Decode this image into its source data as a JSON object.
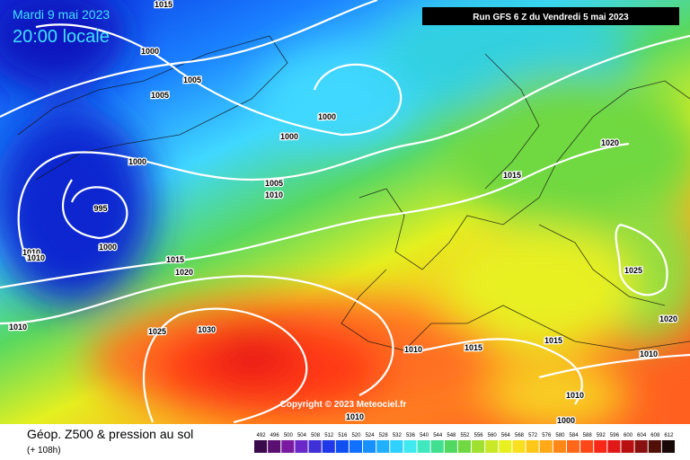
{
  "header": {
    "date": "Mardi 9 mai 2023",
    "time": "20:00 locale",
    "run": "Run GFS 6 Z du Vendredi 5 mai 2023",
    "copyright": "Copyright © 2023 Meteociel.fr"
  },
  "footer": {
    "title": "Géop. Z500 & pression au sol",
    "subtitle": "(+ 108h)"
  },
  "isobar_labels": [
    1015,
    1000,
    1005,
    1005,
    1000,
    1000,
    1000,
    995,
    1000,
    1010,
    1010,
    1015,
    1020,
    1005,
    1010,
    1015,
    1020,
    1025,
    1020,
    1010,
    1025,
    1030,
    1010,
    1015,
    1015,
    1010,
    1010,
    1000,
    1010
  ],
  "colorbar": {
    "labels": [
      492,
      496,
      500,
      504,
      508,
      512,
      516,
      520,
      524,
      528,
      532,
      536,
      540,
      544,
      548,
      552,
      556,
      560,
      564,
      568,
      572,
      576,
      580,
      584,
      588,
      592,
      596,
      600,
      604,
      608,
      612
    ],
    "colors": [
      "#3a0a4a",
      "#5a1070",
      "#7a1aa0",
      "#6a28c8",
      "#4030d8",
      "#2038e8",
      "#1050f0",
      "#1070ff",
      "#1890ff",
      "#20b0ff",
      "#30d0ff",
      "#40e8f0",
      "#40e8c0",
      "#40e090",
      "#50d860",
      "#70d840",
      "#a0e030",
      "#c8e828",
      "#e8f020",
      "#f8e020",
      "#ffc818",
      "#ffa818",
      "#ff8818",
      "#ff6818",
      "#ff4818",
      "#f82818",
      "#e01818",
      "#b81010",
      "#881010",
      "#501008",
      "#180808"
    ]
  }
}
